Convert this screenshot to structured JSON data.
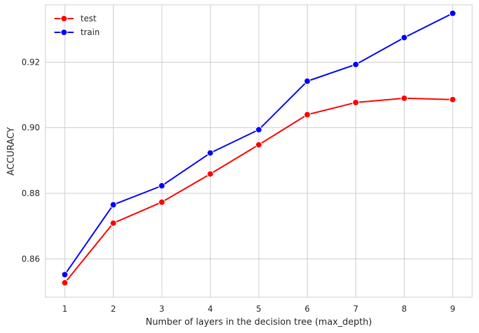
{
  "chart_data": {
    "type": "line",
    "title": "",
    "xlabel": "Number of layers in the decision tree (max_depth)",
    "ylabel": "ACCURACY",
    "x": [
      1,
      2,
      3,
      4,
      5,
      6,
      7,
      8,
      9
    ],
    "xlim": [
      0.6,
      9.4
    ],
    "ylim": [
      0.8483,
      0.9375
    ],
    "x_ticks": [
      "1",
      "2",
      "3",
      "4",
      "5",
      "6",
      "7",
      "8",
      "9"
    ],
    "y_ticks": [
      "0.86",
      "0.88",
      "0.90",
      "0.92"
    ],
    "grid": true,
    "legend_position": "top-left",
    "series": [
      {
        "name": "test",
        "color": "#ff0000",
        "values": [
          0.8527,
          0.8709,
          0.8773,
          0.8859,
          0.8948,
          0.904,
          0.9077,
          0.909,
          0.9086
        ]
      },
      {
        "name": "train",
        "color": "#0000ff",
        "values": [
          0.8552,
          0.8765,
          0.8823,
          0.8923,
          0.8994,
          0.9142,
          0.9193,
          0.9275,
          0.9349
        ]
      }
    ]
  }
}
